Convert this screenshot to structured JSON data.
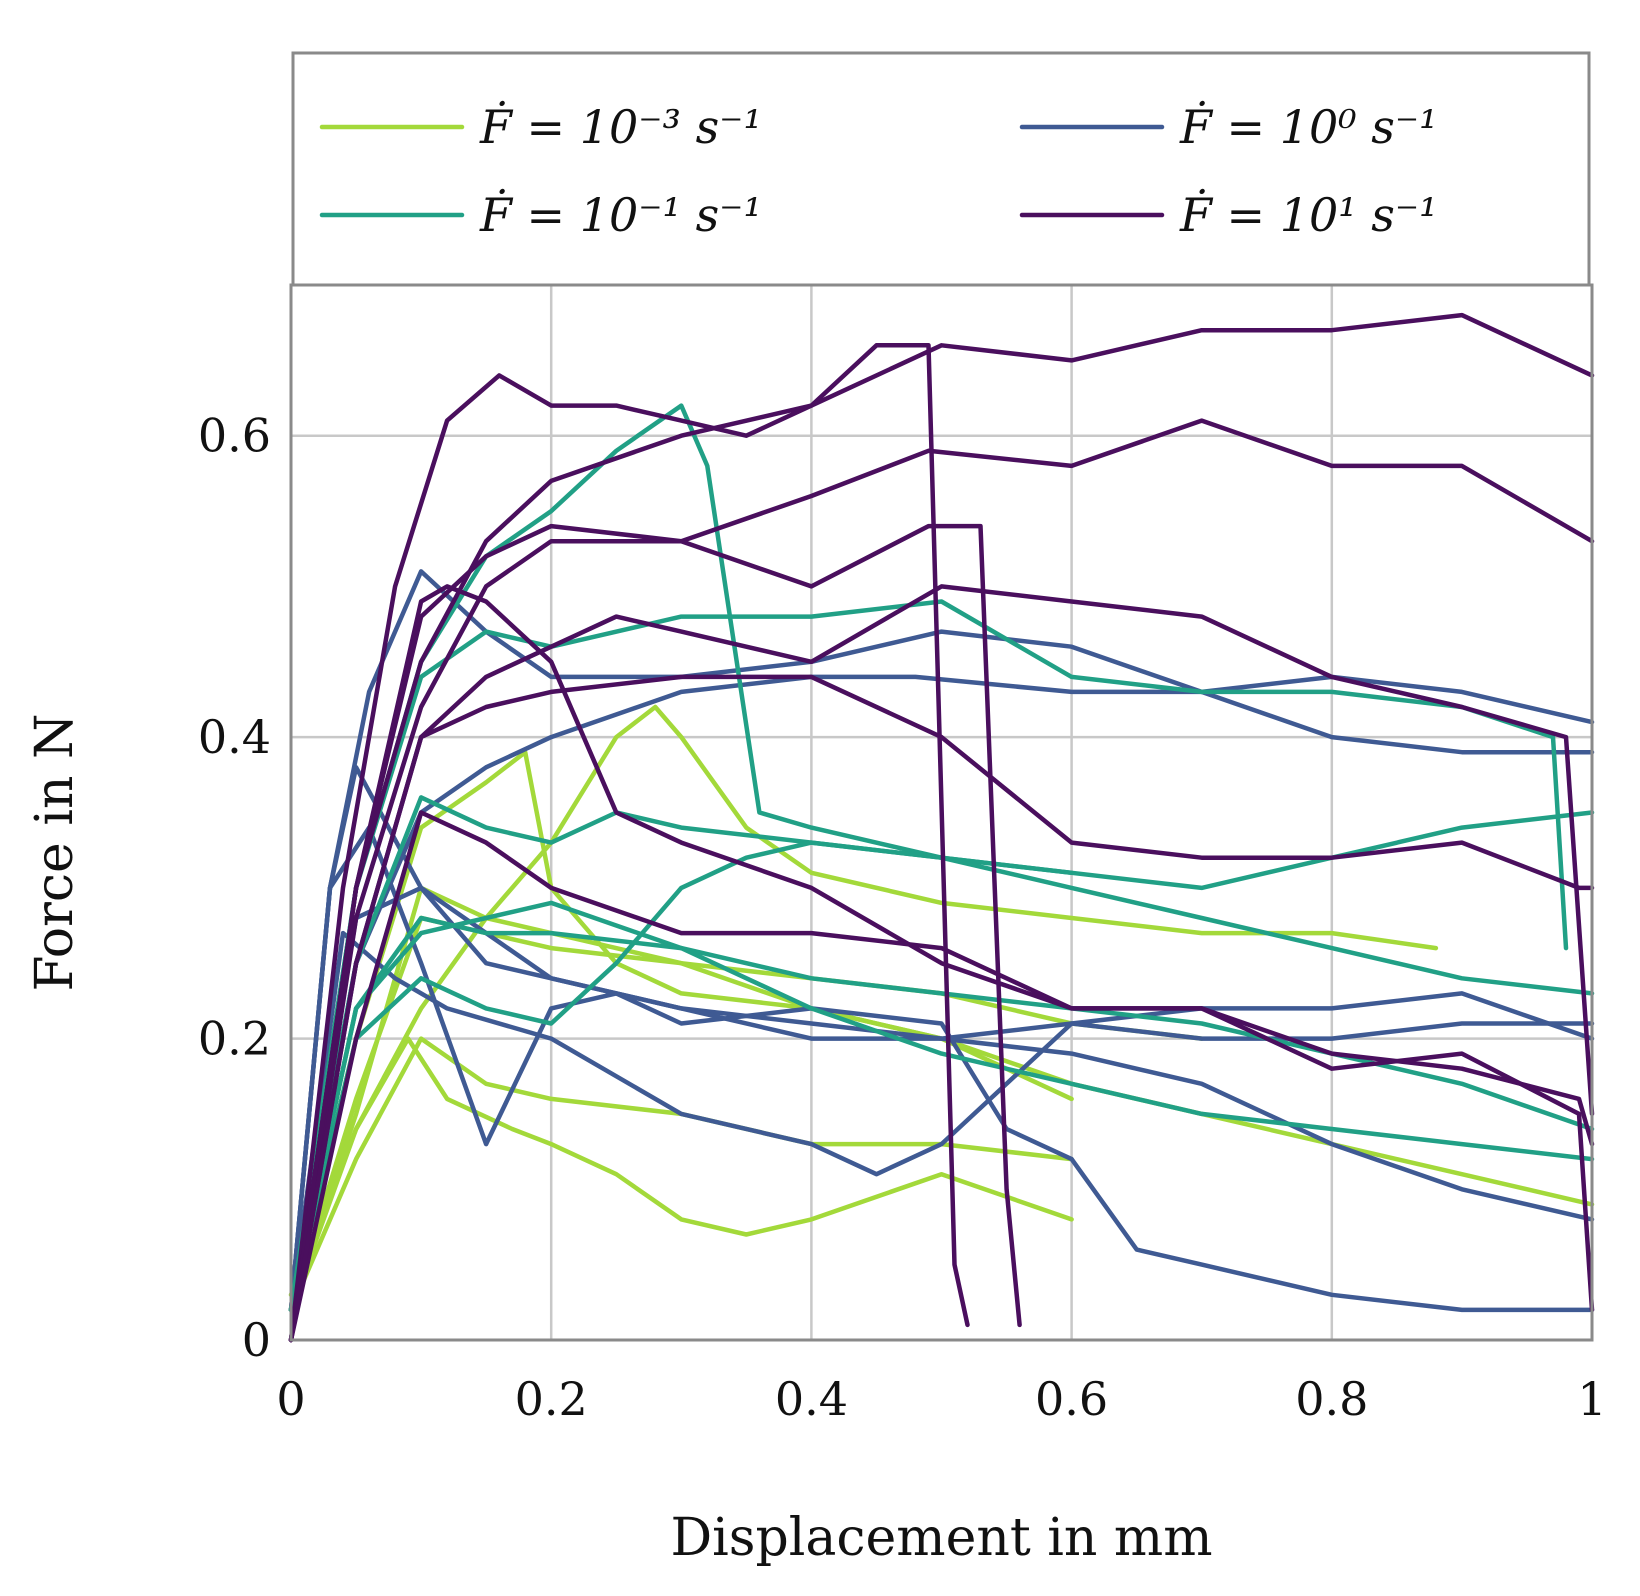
{
  "chart_data": {
    "type": "line",
    "title": "",
    "xlabel": "Displacement in mm",
    "ylabel": "Force in N",
    "xlim": [
      0,
      1
    ],
    "ylim": [
      0,
      0.7
    ],
    "xticks": [
      0,
      0.2,
      0.4,
      0.6,
      0.8,
      1
    ],
    "xtick_labels": [
      "0",
      "0.2",
      "0.4",
      "0.6",
      "0.8",
      "1"
    ],
    "yticks": [
      0,
      0.2,
      0.4,
      0.6
    ],
    "ytick_labels": [
      "0",
      "0.2",
      "0.4",
      "0.6"
    ],
    "grid": true,
    "legend_position": "top",
    "legend": [
      {
        "label": "Ḟ = 10⁻³ s⁻¹",
        "color": "#a3d93a"
      },
      {
        "label": "Ḟ = 10⁰ s⁻¹",
        "color": "#3f5a93"
      },
      {
        "label": "Ḟ = 10⁻¹ s⁻¹",
        "color": "#21a086"
      },
      {
        "label": "Ḟ = 10¹ s⁻¹",
        "color": "#4a0f5e"
      }
    ],
    "series": [
      {
        "name": "Ḟ = 10⁻³ s⁻¹",
        "color": "#a3d93a",
        "x": [
          0,
          0.05,
          0.09,
          0.12,
          0.17,
          0.2,
          0.25,
          0.3,
          0.35,
          0.4,
          0.5,
          0.6
        ],
        "y": [
          0.03,
          0.14,
          0.2,
          0.16,
          0.14,
          0.13,
          0.11,
          0.08,
          0.07,
          0.08,
          0.11,
          0.08
        ]
      },
      {
        "name": "Ḟ = 10⁻³ s⁻¹",
        "color": "#a3d93a",
        "x": [
          0,
          0.05,
          0.1,
          0.15,
          0.2,
          0.3,
          0.4,
          0.5,
          0.6,
          0.7,
          0.8,
          0.9,
          1.0
        ],
        "y": [
          0.02,
          0.15,
          0.3,
          0.28,
          0.27,
          0.25,
          0.22,
          0.2,
          0.17,
          0.15,
          0.13,
          0.11,
          0.09
        ]
      },
      {
        "name": "Ḟ = 10⁻³ s⁻¹",
        "color": "#a3d93a",
        "x": [
          0,
          0.05,
          0.1,
          0.15,
          0.18,
          0.2,
          0.25,
          0.3,
          0.4,
          0.5,
          0.6
        ],
        "y": [
          0.02,
          0.2,
          0.34,
          0.37,
          0.39,
          0.3,
          0.25,
          0.23,
          0.22,
          0.2,
          0.16
        ]
      },
      {
        "name": "Ḟ = 10⁻³ s⁻¹",
        "color": "#a3d93a",
        "x": [
          0,
          0.05,
          0.1,
          0.15,
          0.2,
          0.25,
          0.28,
          0.3,
          0.35,
          0.4,
          0.5,
          0.6,
          0.7,
          0.8,
          0.88
        ],
        "y": [
          0.02,
          0.14,
          0.22,
          0.28,
          0.33,
          0.4,
          0.42,
          0.4,
          0.34,
          0.31,
          0.29,
          0.28,
          0.27,
          0.27,
          0.26
        ]
      },
      {
        "name": "Ḟ = 10⁻³ s⁻¹",
        "color": "#a3d93a",
        "x": [
          0,
          0.05,
          0.1,
          0.15,
          0.2,
          0.3,
          0.4,
          0.5,
          0.6
        ],
        "y": [
          0.02,
          0.12,
          0.2,
          0.17,
          0.16,
          0.15,
          0.13,
          0.13,
          0.12
        ]
      },
      {
        "name": "Ḟ = 10⁻³ s⁻¹",
        "color": "#a3d93a",
        "x": [
          0,
          0.05,
          0.1,
          0.15,
          0.2,
          0.3,
          0.4,
          0.5,
          0.6,
          0.7
        ],
        "y": [
          0.02,
          0.16,
          0.28,
          0.27,
          0.26,
          0.25,
          0.24,
          0.23,
          0.21,
          0.2
        ]
      },
      {
        "name": "Ḟ = 10⁰ s⁻¹",
        "color": "#3f5a93",
        "x": [
          0,
          0.03,
          0.06,
          0.1,
          0.15,
          0.2,
          0.3,
          0.4,
          0.5,
          0.6,
          0.7,
          0.8,
          0.9,
          1.0
        ],
        "y": [
          0.02,
          0.3,
          0.43,
          0.51,
          0.47,
          0.44,
          0.44,
          0.45,
          0.47,
          0.46,
          0.43,
          0.4,
          0.39,
          0.39
        ]
      },
      {
        "name": "Ḟ = 10⁰ s⁻¹",
        "color": "#3f5a93",
        "x": [
          0,
          0.03,
          0.06,
          0.1,
          0.15,
          0.2,
          0.25,
          0.3,
          0.4,
          0.5,
          0.55,
          0.6,
          0.65,
          0.7,
          0.8,
          0.9,
          1.0
        ],
        "y": [
          0.02,
          0.3,
          0.34,
          0.25,
          0.13,
          0.22,
          0.23,
          0.21,
          0.22,
          0.21,
          0.14,
          0.12,
          0.06,
          0.05,
          0.03,
          0.02,
          0.02
        ]
      },
      {
        "name": "Ḟ = 10⁰ s⁻¹",
        "color": "#3f5a93",
        "x": [
          0,
          0.03,
          0.05,
          0.1,
          0.2,
          0.3,
          0.4,
          0.5,
          0.6,
          0.7,
          0.8,
          0.9,
          1.0
        ],
        "y": [
          0.02,
          0.3,
          0.38,
          0.3,
          0.24,
          0.22,
          0.21,
          0.2,
          0.21,
          0.22,
          0.22,
          0.23,
          0.2
        ]
      },
      {
        "name": "Ḟ = 10⁰ s⁻¹",
        "color": "#3f5a93",
        "x": [
          0,
          0.04,
          0.08,
          0.12,
          0.2,
          0.3,
          0.4,
          0.45,
          0.5,
          0.6,
          0.7,
          0.8,
          0.9,
          1.0
        ],
        "y": [
          0.02,
          0.27,
          0.24,
          0.22,
          0.2,
          0.15,
          0.13,
          0.11,
          0.13,
          0.21,
          0.2,
          0.2,
          0.21,
          0.21
        ]
      },
      {
        "name": "Ḟ = 10⁰ s⁻¹",
        "color": "#3f5a93",
        "x": [
          0,
          0.05,
          0.1,
          0.15,
          0.2,
          0.3,
          0.4,
          0.5,
          0.6,
          0.7,
          0.8,
          0.9,
          1.0
        ],
        "y": [
          0.02,
          0.28,
          0.3,
          0.25,
          0.24,
          0.22,
          0.2,
          0.2,
          0.19,
          0.17,
          0.13,
          0.1,
          0.08
        ]
      },
      {
        "name": "Ḟ = 10⁰ s⁻¹",
        "color": "#3f5a93",
        "x": [
          0,
          0.05,
          0.1,
          0.15,
          0.2,
          0.3,
          0.4,
          0.48,
          0.6,
          0.7,
          0.8,
          0.9,
          1.0
        ],
        "y": [
          0.02,
          0.25,
          0.35,
          0.38,
          0.4,
          0.43,
          0.44,
          0.44,
          0.43,
          0.43,
          0.44,
          0.43,
          0.41
        ]
      },
      {
        "name": "Ḟ = 10⁻¹ s⁻¹",
        "color": "#21a086",
        "x": [
          0,
          0.05,
          0.1,
          0.15,
          0.2,
          0.25,
          0.3,
          0.32,
          0.36,
          0.4,
          0.5,
          0.6
        ],
        "y": [
          0.02,
          0.3,
          0.45,
          0.52,
          0.55,
          0.59,
          0.62,
          0.58,
          0.35,
          0.34,
          0.32,
          0.31
        ]
      },
      {
        "name": "Ḟ = 10⁻¹ s⁻¹",
        "color": "#21a086",
        "x": [
          0,
          0.05,
          0.1,
          0.15,
          0.2,
          0.3,
          0.4,
          0.5,
          0.6,
          0.7,
          0.8,
          0.9,
          0.97,
          0.98
        ],
        "y": [
          0.02,
          0.3,
          0.44,
          0.47,
          0.46,
          0.48,
          0.48,
          0.49,
          0.44,
          0.43,
          0.43,
          0.42,
          0.4,
          0.26
        ]
      },
      {
        "name": "Ḟ = 10⁻¹ s⁻¹",
        "color": "#21a086",
        "x": [
          0,
          0.05,
          0.1,
          0.15,
          0.2,
          0.25,
          0.3,
          0.4,
          0.5,
          0.6,
          0.7,
          0.8,
          0.9,
          1.0
        ],
        "y": [
          0.02,
          0.25,
          0.36,
          0.34,
          0.33,
          0.35,
          0.34,
          0.33,
          0.32,
          0.31,
          0.3,
          0.32,
          0.34,
          0.35
        ]
      },
      {
        "name": "Ḟ = 10⁻¹ s⁻¹",
        "color": "#21a086",
        "x": [
          0,
          0.05,
          0.1,
          0.15,
          0.2,
          0.3,
          0.4,
          0.5,
          0.6,
          0.7,
          0.8,
          0.9,
          1.0
        ],
        "y": [
          0.02,
          0.22,
          0.28,
          0.27,
          0.27,
          0.26,
          0.24,
          0.23,
          0.22,
          0.21,
          0.19,
          0.17,
          0.14
        ]
      },
      {
        "name": "Ḟ = 10⁻¹ s⁻¹",
        "color": "#21a086",
        "x": [
          0,
          0.05,
          0.1,
          0.15,
          0.2,
          0.25,
          0.3,
          0.35,
          0.4,
          0.5,
          0.6,
          0.7,
          0.8,
          0.9,
          1.0
        ],
        "y": [
          0.02,
          0.2,
          0.24,
          0.22,
          0.21,
          0.25,
          0.3,
          0.32,
          0.33,
          0.32,
          0.3,
          0.28,
          0.26,
          0.24,
          0.23
        ]
      },
      {
        "name": "Ḟ = 10⁻¹ s⁻¹",
        "color": "#21a086",
        "x": [
          0,
          0.05,
          0.1,
          0.15,
          0.2,
          0.3,
          0.4,
          0.5,
          0.6,
          0.7,
          0.8,
          0.9,
          1.0
        ],
        "y": [
          0.02,
          0.22,
          0.27,
          0.28,
          0.29,
          0.26,
          0.22,
          0.19,
          0.17,
          0.15,
          0.14,
          0.13,
          0.12
        ]
      },
      {
        "name": "Ḟ = 10¹ s⁻¹",
        "color": "#4a0f5e",
        "x": [
          0,
          0.04,
          0.08,
          0.12,
          0.16,
          0.2,
          0.25,
          0.3,
          0.35,
          0.4,
          0.45,
          0.49,
          0.51,
          0.52
        ],
        "y": [
          0.0,
          0.3,
          0.5,
          0.61,
          0.64,
          0.62,
          0.62,
          0.61,
          0.6,
          0.62,
          0.66,
          0.66,
          0.05,
          0.01
        ]
      },
      {
        "name": "Ḟ = 10¹ s⁻¹",
        "color": "#4a0f5e",
        "x": [
          0,
          0.05,
          0.1,
          0.15,
          0.2,
          0.3,
          0.4,
          0.5,
          0.6,
          0.7,
          0.8,
          0.9,
          1.0
        ],
        "y": [
          0.0,
          0.3,
          0.45,
          0.53,
          0.57,
          0.6,
          0.62,
          0.66,
          0.65,
          0.67,
          0.67,
          0.68,
          0.64
        ]
      },
      {
        "name": "Ḟ = 10¹ s⁻¹",
        "color": "#4a0f5e",
        "x": [
          0,
          0.05,
          0.1,
          0.15,
          0.2,
          0.3,
          0.4,
          0.49,
          0.6,
          0.7,
          0.8,
          0.9,
          1.0
        ],
        "y": [
          0.0,
          0.28,
          0.42,
          0.5,
          0.53,
          0.53,
          0.56,
          0.59,
          0.58,
          0.61,
          0.58,
          0.58,
          0.53
        ]
      },
      {
        "name": "Ḟ = 10¹ s⁻¹",
        "color": "#4a0f5e",
        "x": [
          0,
          0.05,
          0.1,
          0.15,
          0.2,
          0.3,
          0.4,
          0.49,
          0.53,
          0.55,
          0.56
        ],
        "y": [
          0.0,
          0.3,
          0.48,
          0.52,
          0.54,
          0.53,
          0.5,
          0.54,
          0.54,
          0.1,
          0.01
        ]
      },
      {
        "name": "Ḟ = 10¹ s⁻¹",
        "color": "#4a0f5e",
        "x": [
          0,
          0.05,
          0.1,
          0.15,
          0.2,
          0.3,
          0.4,
          0.5,
          0.6,
          0.7,
          0.8,
          0.9,
          0.99,
          1.0
        ],
        "y": [
          0.0,
          0.25,
          0.4,
          0.42,
          0.43,
          0.44,
          0.44,
          0.4,
          0.33,
          0.32,
          0.32,
          0.33,
          0.3,
          0.3
        ]
      },
      {
        "name": "Ḟ = 10¹ s⁻¹",
        "color": "#4a0f5e",
        "x": [
          0,
          0.05,
          0.1,
          0.12,
          0.15,
          0.2,
          0.25,
          0.3,
          0.4,
          0.5,
          0.6,
          0.7,
          0.8,
          0.9,
          0.99,
          1.0
        ],
        "y": [
          0.0,
          0.3,
          0.49,
          0.5,
          0.49,
          0.45,
          0.35,
          0.33,
          0.3,
          0.25,
          0.22,
          0.22,
          0.18,
          0.19,
          0.15,
          0.02
        ]
      },
      {
        "name": "Ḟ = 10¹ s⁻¹",
        "color": "#4a0f5e",
        "x": [
          0,
          0.05,
          0.1,
          0.15,
          0.2,
          0.3,
          0.4,
          0.5,
          0.6,
          0.7,
          0.8,
          0.9,
          0.99,
          1.0
        ],
        "y": [
          0.0,
          0.2,
          0.35,
          0.33,
          0.3,
          0.27,
          0.27,
          0.26,
          0.22,
          0.22,
          0.19,
          0.18,
          0.16,
          0.13
        ]
      },
      {
        "name": "Ḟ = 10¹ s⁻¹",
        "color": "#4a0f5e",
        "x": [
          0,
          0.05,
          0.1,
          0.15,
          0.2,
          0.25,
          0.3,
          0.4,
          0.5,
          0.6,
          0.7,
          0.8,
          0.9,
          0.98,
          1.0
        ],
        "y": [
          0.0,
          0.25,
          0.4,
          0.44,
          0.46,
          0.48,
          0.47,
          0.45,
          0.5,
          0.49,
          0.48,
          0.44,
          0.42,
          0.4,
          0.15
        ]
      }
    ]
  }
}
